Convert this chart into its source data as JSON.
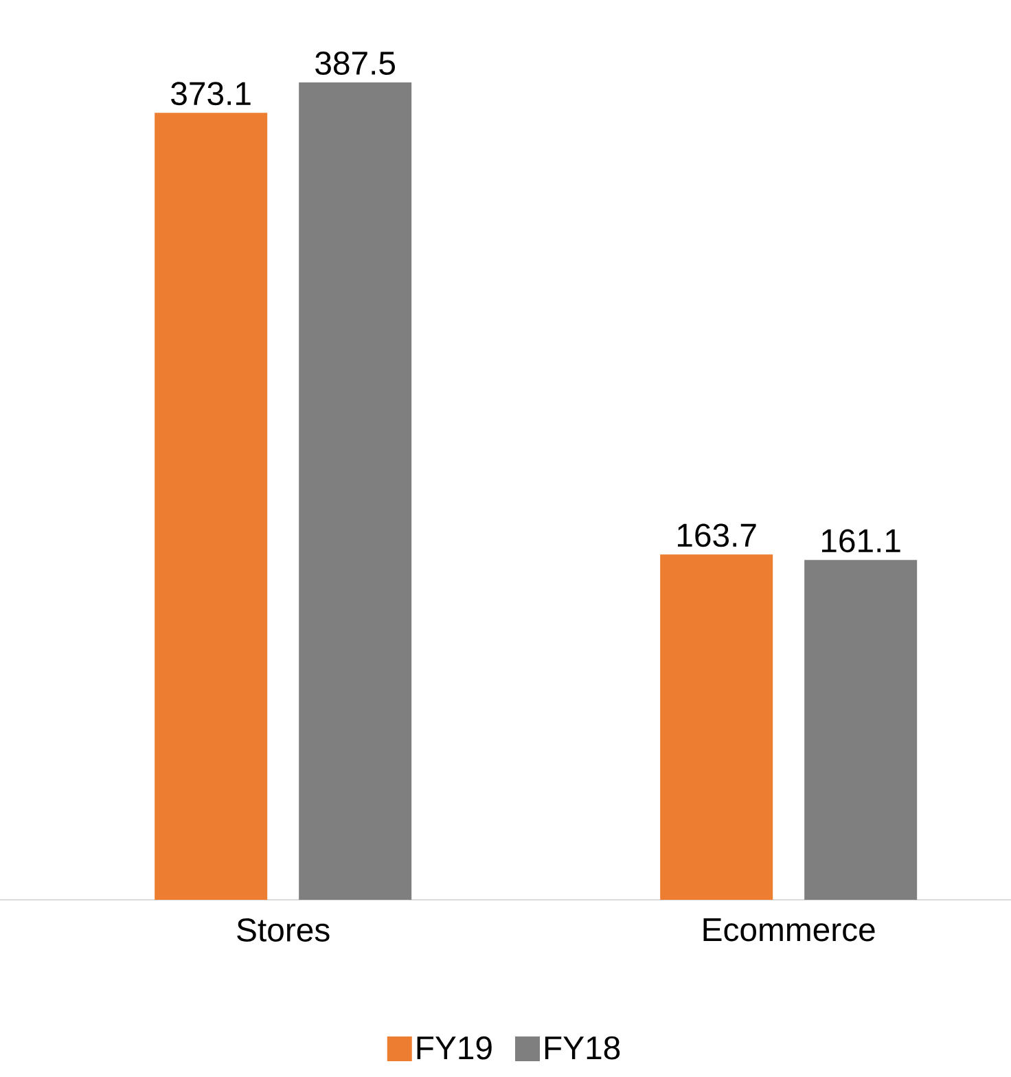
{
  "chart_data": {
    "type": "bar",
    "categories": [
      "Stores",
      "Ecommerce"
    ],
    "series": [
      {
        "name": "FY19",
        "color": "#ed7d31",
        "values": [
          373.1,
          163.7
        ]
      },
      {
        "name": "FY18",
        "color": "#7f7f7f",
        "values": [
          387.5,
          161.1
        ]
      }
    ],
    "data_labels": true,
    "legend": "bottom"
  }
}
